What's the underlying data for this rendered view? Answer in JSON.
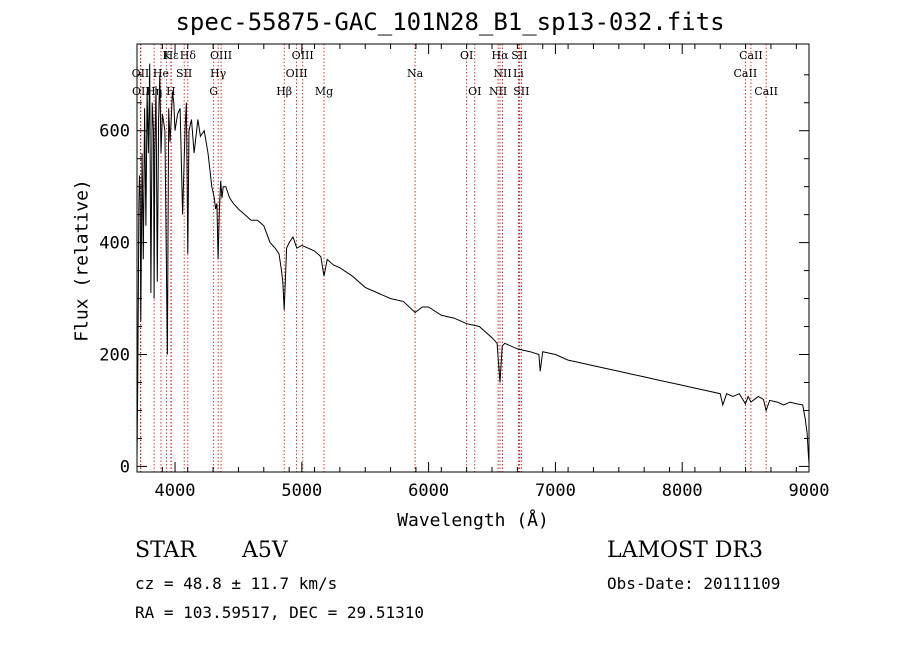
{
  "chart_data": {
    "type": "line",
    "title": "spec-55875-GAC_101N28_B1_sp13-032.fits",
    "xlabel": "Wavelength (Å)",
    "ylabel": "Flux (relative)",
    "xlim": [
      3700,
      9000
    ],
    "ylim": [
      -10,
      755
    ],
    "xticks": [
      4000,
      5000,
      6000,
      7000,
      8000,
      9000
    ],
    "yticks": [
      0,
      200,
      400,
      600
    ],
    "series": [
      {
        "name": "spectrum",
        "x": [
          3700,
          3705,
          3710,
          3715,
          3720,
          3725,
          3730,
          3740,
          3750,
          3760,
          3770,
          3780,
          3790,
          3800,
          3810,
          3820,
          3830,
          3835,
          3840,
          3850,
          3860,
          3870,
          3880,
          3889,
          3900,
          3920,
          3940,
          3950,
          3960,
          3970,
          3980,
          3990,
          4000,
          4020,
          4040,
          4060,
          4080,
          4090,
          4101,
          4110,
          4130,
          4150,
          4180,
          4200,
          4230,
          4260,
          4290,
          4310,
          4320,
          4330,
          4340,
          4350,
          4360,
          4370,
          4380,
          4400,
          4430,
          4460,
          4500,
          4550,
          4600,
          4650,
          4700,
          4750,
          4790,
          4820,
          4840,
          4850,
          4861,
          4870,
          4880,
          4900,
          4930,
          4960,
          5000,
          5050,
          5100,
          5150,
          5175,
          5200,
          5250,
          5300,
          5400,
          5500,
          5600,
          5700,
          5800,
          5893,
          5950,
          6000,
          6100,
          6200,
          6300,
          6400,
          6500,
          6540,
          6563,
          6580,
          6600,
          6700,
          6800,
          6870,
          6880,
          6900,
          7000,
          7100,
          7200,
          7300,
          7400,
          7500,
          7600,
          7700,
          7800,
          7900,
          8000,
          8100,
          8200,
          8300,
          8320,
          8350,
          8400,
          8450,
          8498,
          8520,
          8542,
          8570,
          8600,
          8640,
          8662,
          8690,
          8750,
          8800,
          8850,
          8900,
          8950,
          8970,
          8985,
          8995,
          9000
        ],
        "values": [
          15,
          120,
          300,
          470,
          520,
          480,
          260,
          560,
          370,
          640,
          430,
          670,
          560,
          720,
          310,
          650,
          600,
          300,
          560,
          680,
          330,
          620,
          700,
          560,
          630,
          600,
          200,
          640,
          580,
          620,
          670,
          650,
          600,
          630,
          640,
          450,
          610,
          650,
          380,
          600,
          620,
          560,
          620,
          590,
          600,
          560,
          500,
          480,
          460,
          470,
          370,
          460,
          510,
          480,
          500,
          500,
          480,
          470,
          460,
          450,
          440,
          440,
          430,
          400,
          390,
          380,
          350,
          330,
          280,
          330,
          390,
          400,
          410,
          390,
          395,
          390,
          385,
          375,
          340,
          370,
          360,
          355,
          340,
          320,
          310,
          300,
          295,
          275,
          285,
          285,
          270,
          265,
          255,
          250,
          230,
          220,
          150,
          215,
          220,
          210,
          205,
          200,
          170,
          205,
          200,
          190,
          185,
          180,
          175,
          170,
          165,
          160,
          155,
          150,
          145,
          140,
          135,
          130,
          110,
          130,
          125,
          130,
          112,
          125,
          115,
          120,
          125,
          120,
          100,
          118,
          115,
          110,
          115,
          112,
          110,
          85,
          60,
          20,
          5
        ]
      }
    ],
    "lines": [
      {
        "name": "Hε",
        "wl": 3970,
        "row": 0
      },
      {
        "name": "K",
        "wl": 3934,
        "row": 0
      },
      {
        "name": "Hδ",
        "wl": 4101,
        "row": 0
      },
      {
        "name": "OIII",
        "wl": 4363,
        "row": 0
      },
      {
        "name": "OIII",
        "wl": 5007,
        "row": 0
      },
      {
        "name": "OI",
        "wl": 6300,
        "row": 0
      },
      {
        "name": "Hα",
        "wl": 6563,
        "row": 0
      },
      {
        "name": "SII",
        "wl": 6716,
        "row": 0
      },
      {
        "name": "CaII",
        "wl": 8542,
        "row": 0
      },
      {
        "name": "OII",
        "wl": 3727,
        "row": 1
      },
      {
        "name": "He",
        "wl": 3889,
        "row": 1
      },
      {
        "name": "SII",
        "wl": 4072,
        "row": 1
      },
      {
        "name": "Hγ",
        "wl": 4340,
        "row": 1
      },
      {
        "name": "OIII",
        "wl": 4959,
        "row": 1
      },
      {
        "name": "Na",
        "wl": 5893,
        "row": 1
      },
      {
        "name": "NII",
        "wl": 6583,
        "row": 1
      },
      {
        "name": "Li",
        "wl": 6708,
        "row": 1
      },
      {
        "name": "CaII",
        "wl": 8498,
        "row": 1
      },
      {
        "name": "OII",
        "wl": 3730,
        "row": 2
      },
      {
        "name": "Hη",
        "wl": 3835,
        "row": 2
      },
      {
        "name": "H",
        "wl": 3968,
        "row": 2
      },
      {
        "name": "G",
        "wl": 4305,
        "row": 2
      },
      {
        "name": "Hβ",
        "wl": 4861,
        "row": 2
      },
      {
        "name": "Mg",
        "wl": 5175,
        "row": 2
      },
      {
        "name": "OI",
        "wl": 6364,
        "row": 2
      },
      {
        "name": "NII",
        "wl": 6548,
        "row": 2
      },
      {
        "name": "SII",
        "wl": 6731,
        "row": 2
      },
      {
        "name": "CaII",
        "wl": 8662,
        "row": 2
      }
    ]
  },
  "info": {
    "object_class": "STAR",
    "subclass": "A5V",
    "survey": "LAMOST DR3",
    "cz": "cz = 48.8 ± 11.7 km/s",
    "obs_date": "Obs-Date: 20111109",
    "coords": "RA = 103.59517, DEC =  29.51310"
  },
  "colors": {
    "axis": "#000000",
    "line_marker": "#cc0000",
    "spectrum": "#000000"
  }
}
